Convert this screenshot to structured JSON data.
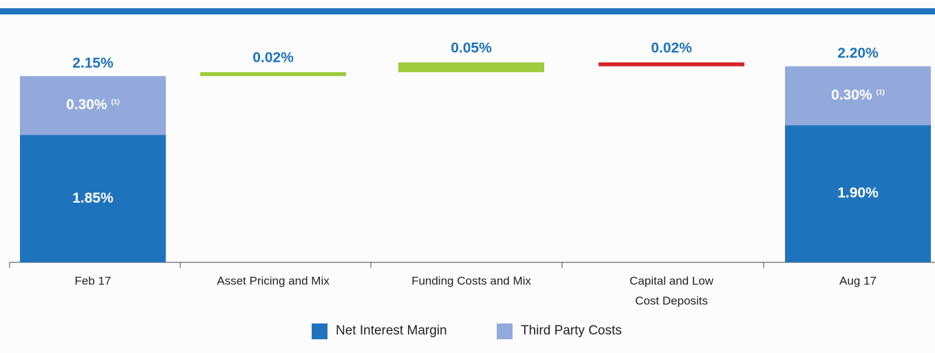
{
  "chart_data": {
    "type": "waterfall",
    "categories": [
      "Feb 17",
      "Asset Pricing and Mix",
      "Funding Costs and Mix",
      [
        "Capital and Low",
        "Cost Deposits"
      ],
      "Aug 17"
    ],
    "series": [
      {
        "name": "Net Interest Margin",
        "color": "#1f73bc",
        "values": [
          1.85,
          null,
          null,
          null,
          1.9
        ],
        "value_labels": [
          "1.85%",
          null,
          null,
          null,
          "1.90%"
        ]
      },
      {
        "name": "Third Party Costs",
        "color": "#93a9dc",
        "values": [
          0.3,
          null,
          null,
          null,
          0.3
        ],
        "value_labels": [
          "0.30%",
          null,
          null,
          null,
          "0.30%"
        ]
      }
    ],
    "footnote": "(1)",
    "totals": [
      2.15,
      null,
      null,
      null,
      2.2
    ],
    "total_labels": [
      "2.15%",
      null,
      null,
      null,
      "2.20%"
    ],
    "changes": {
      "values": [
        null,
        0.02,
        0.05,
        -0.02,
        null
      ],
      "value_labels": [
        null,
        "0.02%",
        "0.05%",
        "0.02%",
        null
      ],
      "up_color": "#9dcb3c",
      "down_color": "#d6232a"
    },
    "ylim": [
      1.2,
      2.3
    ]
  }
}
